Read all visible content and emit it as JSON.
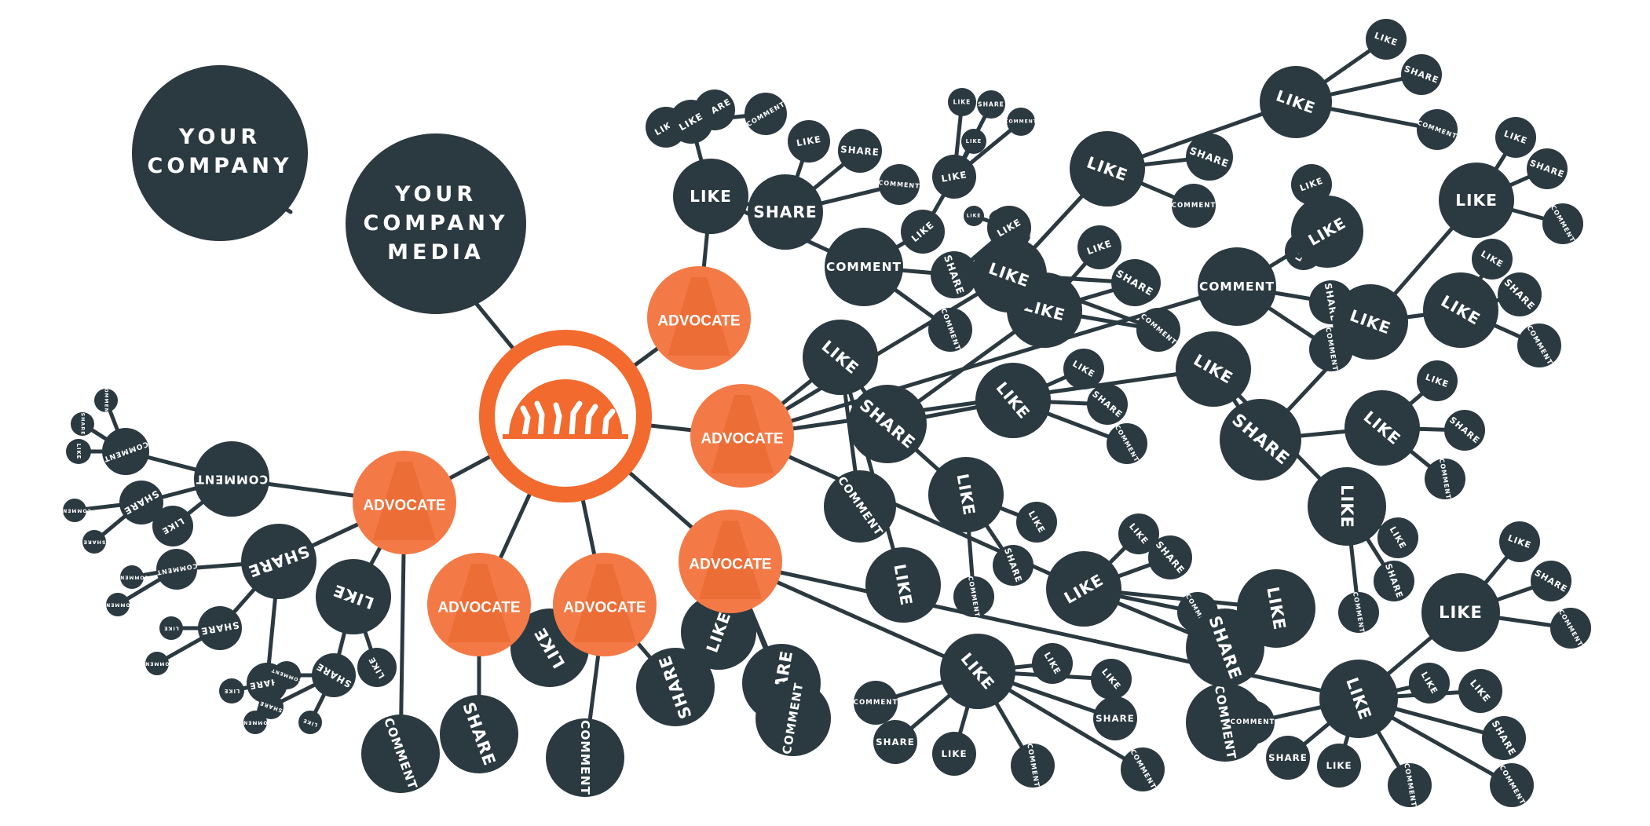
{
  "company": {
    "line1": "YOUR",
    "line2": "COMPANY"
  },
  "media": {
    "line1": "YOUR",
    "line2": "COMPANY",
    "line3": "MEDIA"
  },
  "hub": {
    "icon": "crowd-cheering-icon"
  },
  "advocate_label": "ADVOCATE",
  "actions": {
    "like": "LIKE",
    "share": "SHARE",
    "comment": "COMMENT"
  },
  "colors": {
    "dark": "#2b3940",
    "advocate": "#f37a46",
    "hub": "#f26a2e"
  }
}
